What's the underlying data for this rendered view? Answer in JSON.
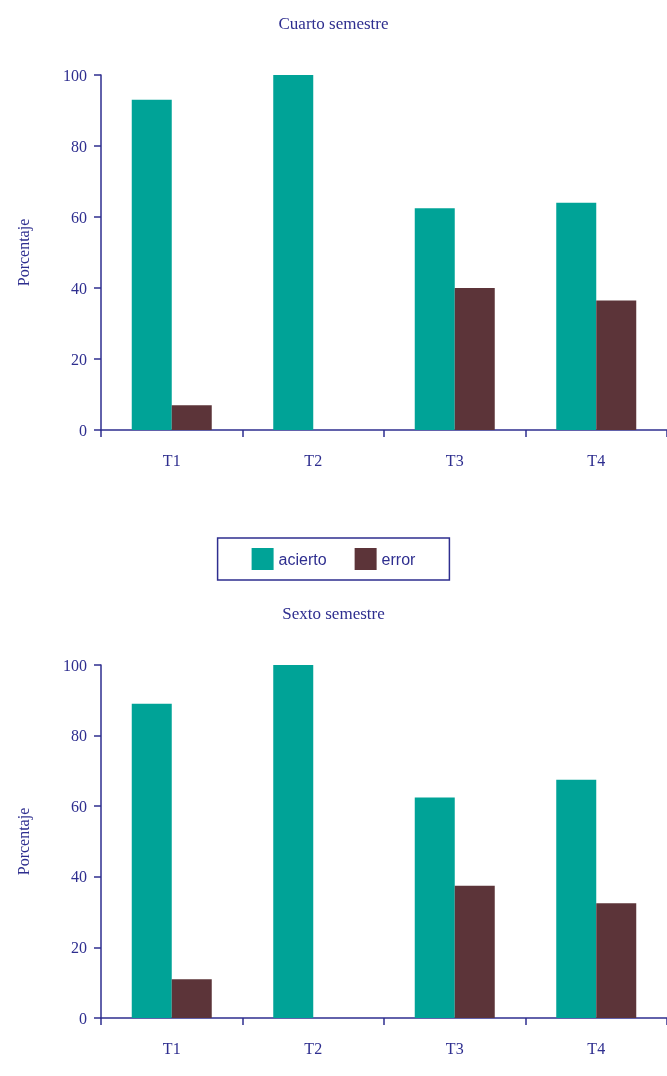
{
  "chart_data": [
    {
      "type": "bar",
      "title": "Cuarto semestre",
      "ylabel": "Porcentaje",
      "categories": [
        "T1",
        "T2",
        "T3",
        "T4"
      ],
      "series": [
        {
          "name": "acierto",
          "color": "#00a397",
          "values": [
            93,
            100,
            62.5,
            64
          ]
        },
        {
          "name": "error",
          "color": "#5c3439",
          "values": [
            7,
            0,
            40,
            36.5
          ]
        }
      ],
      "ylim": [
        0,
        100
      ],
      "yticks": [
        0,
        20,
        40,
        60,
        80,
        100
      ],
      "grid": false,
      "legend": "bottom"
    },
    {
      "type": "bar",
      "title": "Sexto semestre",
      "ylabel": "Porcentaje",
      "categories": [
        "T1",
        "T2",
        "T3",
        "T4"
      ],
      "series": [
        {
          "color": "#00a397",
          "values": [
            89,
            100,
            62.5,
            67.5
          ]
        },
        {
          "color": "#5c3439",
          "values": [
            11,
            0,
            37.5,
            32.5
          ]
        }
      ],
      "ylim": [
        0,
        100
      ],
      "yticks": [
        0,
        20,
        40,
        60,
        80,
        100
      ],
      "grid": false,
      "legend": false
    }
  ]
}
